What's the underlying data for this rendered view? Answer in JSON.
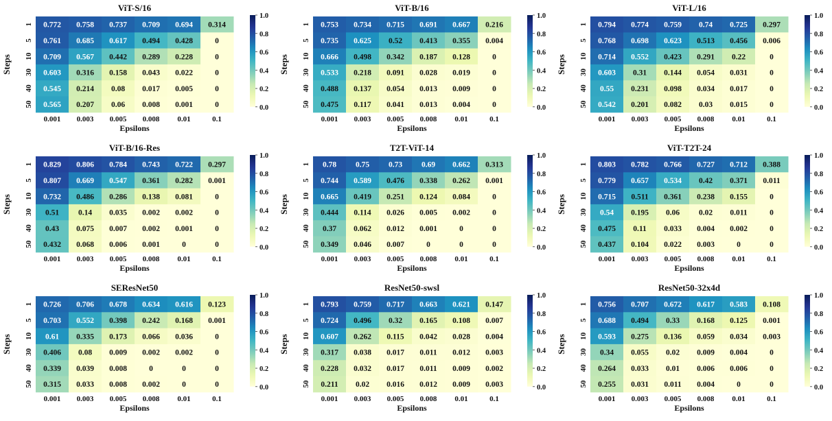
{
  "chart_data": [
    {
      "type": "heatmap",
      "title": "ViT-S/16",
      "xlabel": "Epsilons",
      "ylabel": "Steps",
      "x": [
        "0.001",
        "0.003",
        "0.005",
        "0.008",
        "0.01",
        "0.1"
      ],
      "y": [
        "1",
        "5",
        "10",
        "30",
        "40",
        "50"
      ],
      "values": [
        [
          "0.772",
          "0.758",
          "0.737",
          "0.709",
          "0.694",
          "0.314"
        ],
        [
          "0.761",
          "0.685",
          "0.617",
          "0.494",
          "0.428",
          "0"
        ],
        [
          "0.709",
          "0.567",
          "0.442",
          "0.289",
          "0.228",
          "0"
        ],
        [
          "0.603",
          "0.316",
          "0.158",
          "0.043",
          "0.022",
          "0"
        ],
        [
          "0.545",
          "0.214",
          "0.08",
          "0.017",
          "0.005",
          "0"
        ],
        [
          "0.565",
          "0.207",
          "0.06",
          "0.008",
          "0.001",
          "0"
        ]
      ],
      "colorbar": {
        "range": [
          0.0,
          1.0
        ],
        "ticks": [
          "0.0",
          "0.2",
          "0.4",
          "0.6",
          "0.8",
          "1.0"
        ],
        "colormap": "YlGnBu"
      }
    },
    {
      "type": "heatmap",
      "title": "ViT-B/16",
      "xlabel": "Epsilons",
      "ylabel": "Steps",
      "x": [
        "0.001",
        "0.003",
        "0.005",
        "0.008",
        "0.01",
        "0.1"
      ],
      "y": [
        "1",
        "5",
        "10",
        "30",
        "40",
        "50"
      ],
      "values": [
        [
          "0.753",
          "0.734",
          "0.715",
          "0.691",
          "0.667",
          "0.216"
        ],
        [
          "0.735",
          "0.625",
          "0.52",
          "0.413",
          "0.355",
          "0.004"
        ],
        [
          "0.666",
          "0.498",
          "0.342",
          "0.187",
          "0.128",
          "0"
        ],
        [
          "0.533",
          "0.218",
          "0.091",
          "0.028",
          "0.019",
          "0"
        ],
        [
          "0.488",
          "0.137",
          "0.054",
          "0.013",
          "0.009",
          "0"
        ],
        [
          "0.475",
          "0.117",
          "0.041",
          "0.013",
          "0.004",
          "0"
        ]
      ],
      "colorbar": {
        "range": [
          0.0,
          1.0
        ],
        "ticks": [
          "0.0",
          "0.2",
          "0.4",
          "0.6",
          "0.8",
          "1.0"
        ],
        "colormap": "YlGnBu"
      }
    },
    {
      "type": "heatmap",
      "title": "ViT-L/16",
      "xlabel": "Epsilons",
      "ylabel": "Steps",
      "x": [
        "0.001",
        "0.003",
        "0.005",
        "0.008",
        "0.01",
        "0.1"
      ],
      "y": [
        "1",
        "5",
        "10",
        "30",
        "40",
        "50"
      ],
      "values": [
        [
          "0.794",
          "0.774",
          "0.759",
          "0.74",
          "0.725",
          "0.297"
        ],
        [
          "0.768",
          "0.698",
          "0.623",
          "0.513",
          "0.456",
          "0.006"
        ],
        [
          "0.714",
          "0.552",
          "0.423",
          "0.291",
          "0.22",
          "0"
        ],
        [
          "0.603",
          "0.31",
          "0.144",
          "0.054",
          "0.031",
          "0"
        ],
        [
          "0.55",
          "0.231",
          "0.098",
          "0.034",
          "0.017",
          "0"
        ],
        [
          "0.542",
          "0.201",
          "0.082",
          "0.03",
          "0.015",
          "0"
        ]
      ],
      "colorbar": {
        "range": [
          0.0,
          1.0
        ],
        "ticks": [
          "0.0",
          "0.2",
          "0.4",
          "0.6",
          "0.8",
          "1.0"
        ],
        "colormap": "YlGnBu"
      }
    },
    {
      "type": "heatmap",
      "title": "ViT-B/16-Res",
      "xlabel": "Epsilons",
      "ylabel": "Steps",
      "x": [
        "0.001",
        "0.003",
        "0.005",
        "0.008",
        "0.01",
        "0.1"
      ],
      "y": [
        "1",
        "5",
        "10",
        "30",
        "40",
        "50"
      ],
      "values": [
        [
          "0.829",
          "0.806",
          "0.784",
          "0.743",
          "0.722",
          "0.297"
        ],
        [
          "0.807",
          "0.669",
          "0.547",
          "0.361",
          "0.282",
          "0.001"
        ],
        [
          "0.732",
          "0.486",
          "0.286",
          "0.138",
          "0.081",
          "0"
        ],
        [
          "0.51",
          "0.14",
          "0.035",
          "0.002",
          "0.002",
          "0"
        ],
        [
          "0.43",
          "0.075",
          "0.007",
          "0.002",
          "0.001",
          "0"
        ],
        [
          "0.432",
          "0.068",
          "0.006",
          "0.001",
          "0",
          "0"
        ]
      ],
      "colorbar": {
        "range": [
          0.0,
          1.0
        ],
        "ticks": [
          "0.0",
          "0.2",
          "0.4",
          "0.6",
          "0.8",
          "1.0"
        ],
        "colormap": "YlGnBu"
      }
    },
    {
      "type": "heatmap",
      "title": "T2T-ViT-14",
      "xlabel": "Epsilons",
      "ylabel": "Steps",
      "x": [
        "0.001",
        "0.003",
        "0.005",
        "0.008",
        "0.01",
        "0.1"
      ],
      "y": [
        "1",
        "5",
        "10",
        "30",
        "40",
        "50"
      ],
      "values": [
        [
          "0.78",
          "0.75",
          "0.73",
          "0.69",
          "0.662",
          "0.313"
        ],
        [
          "0.744",
          "0.589",
          "0.476",
          "0.338",
          "0.262",
          "0.001"
        ],
        [
          "0.665",
          "0.419",
          "0.251",
          "0.124",
          "0.084",
          "0"
        ],
        [
          "0.444",
          "0.114",
          "0.026",
          "0.005",
          "0.002",
          "0"
        ],
        [
          "0.37",
          "0.062",
          "0.012",
          "0.001",
          "0",
          "0"
        ],
        [
          "0.349",
          "0.046",
          "0.007",
          "0",
          "0",
          "0"
        ]
      ],
      "colorbar": {
        "range": [
          0.0,
          1.0
        ],
        "ticks": [
          "0.0",
          "0.2",
          "0.4",
          "0.6",
          "0.8",
          "1.0"
        ],
        "colormap": "YlGnBu"
      }
    },
    {
      "type": "heatmap",
      "title": "ViT-T2T-24",
      "xlabel": "Epsilons",
      "ylabel": "Steps",
      "x": [
        "0.001",
        "0.003",
        "0.005",
        "0.008",
        "0.01",
        "0.1"
      ],
      "y": [
        "1",
        "5",
        "10",
        "30",
        "40",
        "50"
      ],
      "values": [
        [
          "0.803",
          "0.782",
          "0.766",
          "0.727",
          "0.712",
          "0.388"
        ],
        [
          "0.779",
          "0.657",
          "0.534",
          "0.42",
          "0.371",
          "0.011"
        ],
        [
          "0.715",
          "0.511",
          "0.361",
          "0.238",
          "0.155",
          "0"
        ],
        [
          "0.54",
          "0.195",
          "0.06",
          "0.02",
          "0.011",
          "0"
        ],
        [
          "0.475",
          "0.11",
          "0.033",
          "0.004",
          "0.002",
          "0"
        ],
        [
          "0.437",
          "0.104",
          "0.022",
          "0.003",
          "0",
          "0"
        ]
      ],
      "colorbar": {
        "range": [
          0.0,
          1.0
        ],
        "ticks": [
          "0.0",
          "0.2",
          "0.4",
          "0.6",
          "0.8",
          "1.0"
        ],
        "colormap": "YlGnBu"
      }
    },
    {
      "type": "heatmap",
      "title": "SEResNet50",
      "xlabel": "Epsilons",
      "ylabel": "Steps",
      "x": [
        "0.001",
        "0.003",
        "0.005",
        "0.008",
        "0.01",
        "0.1"
      ],
      "y": [
        "1",
        "5",
        "10",
        "30",
        "40",
        "50"
      ],
      "values": [
        [
          "0.726",
          "0.706",
          "0.678",
          "0.634",
          "0.616",
          "0.123"
        ],
        [
          "0.703",
          "0.552",
          "0.398",
          "0.242",
          "0.168",
          "0.001"
        ],
        [
          "0.61",
          "0.335",
          "0.173",
          "0.066",
          "0.036",
          "0"
        ],
        [
          "0.406",
          "0.08",
          "0.009",
          "0.002",
          "0.002",
          "0"
        ],
        [
          "0.339",
          "0.039",
          "0.008",
          "0",
          "0",
          "0"
        ],
        [
          "0.315",
          "0.033",
          "0.008",
          "0.002",
          "0",
          "0"
        ]
      ],
      "colorbar": {
        "range": [
          0.0,
          1.0
        ],
        "ticks": [
          "0.0",
          "0.2",
          "0.4",
          "0.6",
          "0.8",
          "1.0"
        ],
        "colormap": "YlGnBu"
      }
    },
    {
      "type": "heatmap",
      "title": "ResNet50-swsl",
      "xlabel": "Epsilons",
      "ylabel": "Steps",
      "x": [
        "0.001",
        "0.003",
        "0.005",
        "0.008",
        "0.01",
        "0.1"
      ],
      "y": [
        "1",
        "5",
        "10",
        "30",
        "40",
        "50"
      ],
      "values": [
        [
          "0.793",
          "0.759",
          "0.717",
          "0.663",
          "0.621",
          "0.147"
        ],
        [
          "0.724",
          "0.496",
          "0.32",
          "0.165",
          "0.108",
          "0.007"
        ],
        [
          "0.607",
          "0.262",
          "0.115",
          "0.042",
          "0.028",
          "0.004"
        ],
        [
          "0.317",
          "0.038",
          "0.017",
          "0.011",
          "0.012",
          "0.003"
        ],
        [
          "0.228",
          "0.032",
          "0.017",
          "0.011",
          "0.009",
          "0.002"
        ],
        [
          "0.211",
          "0.02",
          "0.016",
          "0.012",
          "0.009",
          "0.003"
        ]
      ],
      "colorbar": {
        "range": [
          0.0,
          1.0
        ],
        "ticks": [
          "0.0",
          "0.2",
          "0.4",
          "0.6",
          "0.8",
          "1.0"
        ],
        "colormap": "YlGnBu"
      }
    },
    {
      "type": "heatmap",
      "title": "ResNet50-32x4d",
      "xlabel": "Epsilons",
      "ylabel": "Steps",
      "x": [
        "0.001",
        "0.003",
        "0.005",
        "0.008",
        "0.01",
        "0.1"
      ],
      "y": [
        "1",
        "5",
        "10",
        "30",
        "40",
        "50"
      ],
      "values": [
        [
          "0.756",
          "0.707",
          "0.672",
          "0.617",
          "0.583",
          "0.108"
        ],
        [
          "0.688",
          "0.494",
          "0.33",
          "0.168",
          "0.125",
          "0.001"
        ],
        [
          "0.593",
          "0.275",
          "0.136",
          "0.059",
          "0.034",
          "0.003"
        ],
        [
          "0.34",
          "0.055",
          "0.02",
          "0.009",
          "0.004",
          "0"
        ],
        [
          "0.264",
          "0.033",
          "0.01",
          "0.006",
          "0.006",
          "0"
        ],
        [
          "0.255",
          "0.031",
          "0.011",
          "0.004",
          "0",
          "0"
        ]
      ],
      "colorbar": {
        "range": [
          0.0,
          1.0
        ],
        "ticks": [
          "0.0",
          "0.2",
          "0.4",
          "0.6",
          "0.8",
          "1.0"
        ],
        "colormap": "YlGnBu"
      }
    }
  ]
}
